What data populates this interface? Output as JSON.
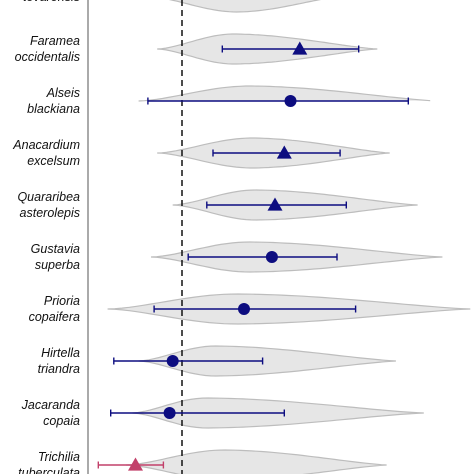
{
  "chart_data": {
    "type": "violin-pointrange",
    "title": "",
    "xlabel": "",
    "ylabel": "",
    "x_range": [
      0,
      100
    ],
    "reference_line": {
      "x": 20,
      "style": "dashed"
    },
    "colors": {
      "violin_fill": "#e6e6e6",
      "violin_stroke": "#bdbdbd",
      "significant": "#0d0d80",
      "highlight": "#c2406a",
      "axis": "#555555",
      "reference": "#111111"
    },
    "species": [
      {
        "lines": [
          "tevarensis"
        ],
        "point": null,
        "shape": null,
        "ci": null,
        "violin": {
          "min": 10,
          "max": 70,
          "peak": 38
        },
        "color": "significant",
        "partial": "top"
      },
      {
        "lines": [
          "Faramea",
          "occidentalis"
        ],
        "point": 58,
        "shape": "triangle",
        "ci": [
          33,
          77
        ],
        "violin": {
          "min": 12,
          "max": 83,
          "peak": 37
        },
        "color": "significant"
      },
      {
        "lines": [
          "Alseis",
          "blackiana"
        ],
        "point": 55,
        "shape": "circle",
        "ci": [
          9,
          93
        ],
        "violin": {
          "min": 6,
          "max": 102,
          "peak": 42
        },
        "color": "significant"
      },
      {
        "lines": [
          "Anacardium",
          "excelsum"
        ],
        "point": 53,
        "shape": "triangle",
        "ci": [
          30,
          71
        ],
        "violin": {
          "min": 12,
          "max": 87,
          "peak": 43
        },
        "color": "significant"
      },
      {
        "lines": [
          "Quararibea",
          "asterolepis"
        ],
        "point": 50,
        "shape": "triangle",
        "ci": [
          28,
          73
        ],
        "violin": {
          "min": 17,
          "max": 96,
          "peak": 44
        },
        "color": "significant"
      },
      {
        "lines": [
          "Gustavia",
          "superba"
        ],
        "point": 49,
        "shape": "circle",
        "ci": [
          22,
          70
        ],
        "violin": {
          "min": 10,
          "max": 104,
          "peak": 42
        },
        "color": "significant"
      },
      {
        "lines": [
          "Prioria",
          "copaifera"
        ],
        "point": 40,
        "shape": "circle",
        "ci": [
          11,
          76
        ],
        "violin": {
          "min": -4,
          "max": 113,
          "peak": 38
        },
        "color": "significant"
      },
      {
        "lines": [
          "Hirtella",
          "triandra"
        ],
        "point": 17,
        "shape": "circle",
        "ci": [
          -2,
          46
        ],
        "violin": {
          "min": 6,
          "max": 89,
          "peak": 31
        },
        "color": "significant"
      },
      {
        "lines": [
          "Jacaranda",
          "copaia"
        ],
        "point": 16,
        "shape": "circle",
        "ci": [
          -3,
          53
        ],
        "violin": {
          "min": 4,
          "max": 98,
          "peak": 28
        },
        "color": "significant"
      },
      {
        "lines": [
          "Trichilia",
          "tuberculata"
        ],
        "point": 5,
        "shape": "triangle",
        "ci": [
          -7,
          14
        ],
        "violin": {
          "min": 2,
          "max": 86,
          "peak": 34
        },
        "color": "highlight",
        "partial": "bottom"
      }
    ]
  }
}
